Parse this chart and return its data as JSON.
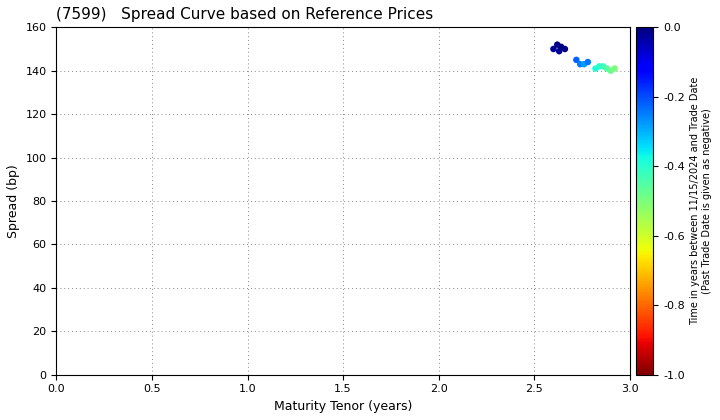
{
  "title": "(7599)   Spread Curve based on Reference Prices",
  "xlabel": "Maturity Tenor (years)",
  "ylabel": "Spread (bp)",
  "colorbar_label_line1": "Time in years between 11/15/2024 and Trade Date",
  "colorbar_label_line2": "(Past Trade Date is given as negative)",
  "xlim": [
    0.0,
    3.0
  ],
  "ylim": [
    0,
    160
  ],
  "xticks": [
    0.0,
    0.5,
    1.0,
    1.5,
    2.0,
    2.5,
    3.0
  ],
  "yticks": [
    0,
    20,
    40,
    60,
    80,
    100,
    120,
    140,
    160
  ],
  "cbar_ticks": [
    0.0,
    -0.2,
    -0.4,
    -0.6,
    -0.8,
    -1.0
  ],
  "vmin": -1.0,
  "vmax": 0.0,
  "scatter_x": [
    2.6,
    2.62,
    2.63,
    2.64,
    2.66,
    2.72,
    2.74,
    2.76,
    2.78,
    2.82,
    2.84,
    2.86,
    2.88,
    2.9,
    2.92
  ],
  "scatter_y": [
    150,
    152,
    149,
    151,
    150,
    145,
    143,
    143,
    144,
    141,
    142,
    142,
    141,
    140,
    141
  ],
  "scatter_c": [
    -0.02,
    -0.01,
    -0.03,
    0.0,
    -0.01,
    -0.22,
    -0.25,
    -0.28,
    -0.24,
    -0.38,
    -0.4,
    -0.42,
    -0.45,
    -0.48,
    -0.5
  ],
  "marker_size": 22,
  "background_color": "#ffffff",
  "grid_color": "#888888",
  "title_fontsize": 11,
  "label_fontsize": 9,
  "tick_fontsize": 8,
  "cbar_label_fontsize": 7
}
